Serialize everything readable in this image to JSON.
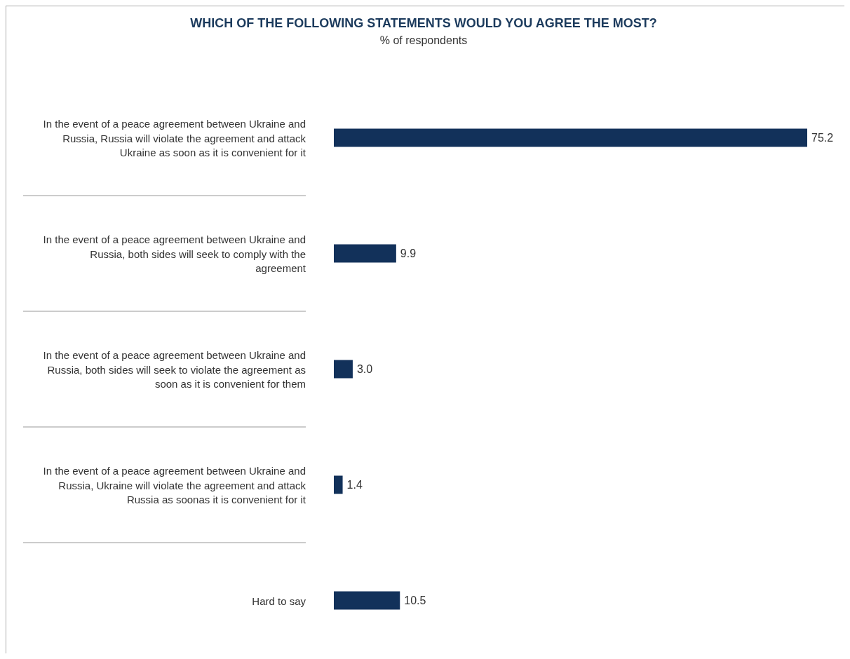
{
  "chart_data": {
    "type": "bar",
    "orientation": "horizontal",
    "title": "WHICH OF THE FOLLOWING STATEMENTS WOULD YOU AGREE THE MOST?",
    "subtitle": "% of respondents",
    "categories": [
      "In the event of a peace agreement between Ukraine and Russia, Russia will violate the agreement and attack Ukraine as soon as it is convenient for it",
      "In the event of a peace agreement between Ukraine and Russia, both sides will seek to comply with the agreement",
      "In the event of a peace agreement between Ukraine and Russia, both sides will seek to violate the agreement as soon as it is convenient for them",
      "In the event of a peace agreement between Ukraine and Russia, Ukraine will violate the agreement and attack Russia as soonas it is convenient for it",
      "Hard to say"
    ],
    "values": [
      75.2,
      9.9,
      3.0,
      1.4,
      10.5
    ],
    "color": "#12315a",
    "data_labels": true,
    "value_labels": [
      "75.2",
      "9.9",
      "3.0",
      "1.4",
      "10.5"
    ]
  }
}
